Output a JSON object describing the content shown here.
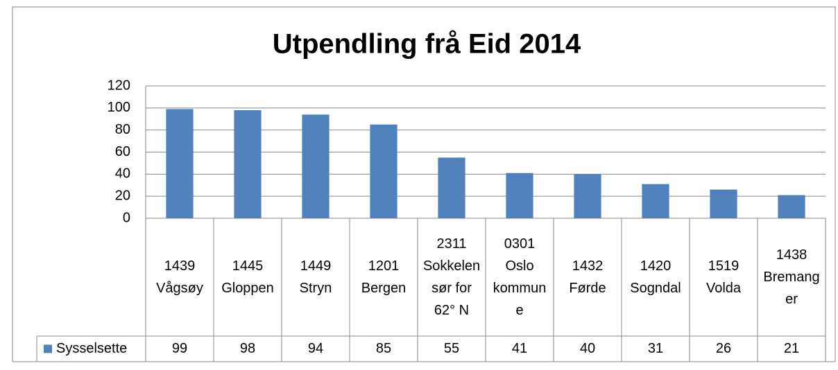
{
  "chart_data": {
    "type": "bar",
    "title": "Utpendling frå Eid 2014",
    "categories": [
      "1439 Vågsøy",
      "1445 Gloppen",
      "1449 Stryn",
      "1201 Bergen",
      "2311 Sokkelen sør for 62° N",
      "0301 Oslo kommune",
      "1432 Førde",
      "1420 Sogndal",
      "1519 Volda",
      "1438 Bremanger"
    ],
    "series": [
      {
        "name": "Sysselsette",
        "color": "#4f81bd",
        "values": [
          99,
          98,
          94,
          85,
          55,
          41,
          40,
          31,
          26,
          21
        ]
      }
    ],
    "ylim": [
      0,
      120
    ],
    "yticks": [
      0,
      20,
      40,
      60,
      80,
      100,
      120
    ],
    "grid": true,
    "data_table": true
  }
}
